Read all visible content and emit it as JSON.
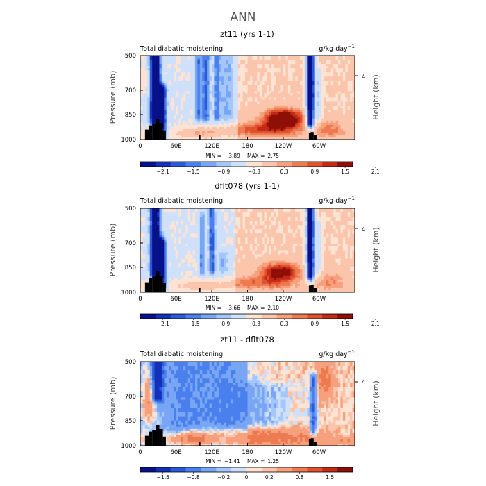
{
  "figure": {
    "title": "ANN"
  },
  "colors": {
    "diverging_palette": [
      "#08108a",
      "#1530b8",
      "#2a5ad8",
      "#4a80ee",
      "#78a6f4",
      "#a4c6f8",
      "#cfe0fb",
      "#fde3d3",
      "#fbc5ac",
      "#f6a07d",
      "#ee7a52",
      "#e0512e",
      "#c42a18",
      "#8e0f08"
    ],
    "terrain": "#000000"
  },
  "chart_data": [
    {
      "type": "heatmap",
      "title": "zt11 (yrs 1-1)",
      "left_label": "Total diabatic moistening",
      "right_label": "g/kg day",
      "right_label_exp": "−1",
      "ylabel": "Pressure (mb)",
      "ylabel_right": "Height (km)",
      "yticks": [
        "500",
        "700",
        "850",
        "1000"
      ],
      "ytick_values": [
        500,
        700,
        850,
        1000
      ],
      "ytick_right": "4",
      "xticks": [
        "0",
        "60E",
        "120E",
        "180",
        "120W",
        "60W"
      ],
      "xtick_lon": [
        0,
        60,
        120,
        180,
        240,
        300
      ],
      "xlim": [
        0,
        360
      ],
      "ylim": [
        1000,
        500
      ],
      "min_label": "MIN =",
      "min_value": "−3.89",
      "max_label": "MAX =",
      "max_value": "2.75",
      "colorbar_labels": [
        "−2.1",
        "−1.5",
        "−0.9",
        "−0.3",
        "0.3",
        "0.9",
        "1.5",
        "2.1"
      ],
      "field": {
        "neg_bands": [
          {
            "lon": 25,
            "w": 6,
            "amp": 3.6,
            "pmin": 500,
            "pmax": 880
          },
          {
            "lon": 37,
            "w": 5,
            "amp": 2.2,
            "pmin": 700,
            "pmax": 960
          },
          {
            "lon": 97,
            "w": 4,
            "amp": 1.3,
            "pmin": 520,
            "pmax": 860
          },
          {
            "lon": 110,
            "w": 5,
            "amp": 1.5,
            "pmin": 500,
            "pmax": 860
          },
          {
            "lon": 128,
            "w": 4,
            "amp": 1.2,
            "pmin": 500,
            "pmax": 860
          },
          {
            "lon": 145,
            "w": 10,
            "amp": 0.9,
            "pmin": 500,
            "pmax": 860
          },
          {
            "lon": 285,
            "w": 5,
            "amp": 3.8,
            "pmin": 500,
            "pmax": 900
          },
          {
            "lon": 300,
            "w": 4,
            "amp": 1.2,
            "pmin": 600,
            "pmax": 870
          }
        ],
        "pos_blobs": [
          {
            "lon": 240,
            "p": 880,
            "wl": 36,
            "wp": 65,
            "amp": 2.6
          },
          {
            "lon": 190,
            "p": 940,
            "wl": 60,
            "wp": 40,
            "amp": 1.1
          },
          {
            "lon": 100,
            "p": 960,
            "wl": 40,
            "wp": 35,
            "amp": 1.0
          },
          {
            "lon": 320,
            "p": 930,
            "wl": 25,
            "wp": 60,
            "amp": 0.9
          },
          {
            "lon": 15,
            "p": 650,
            "wl": 12,
            "wp": 100,
            "amp": 0.4
          }
        ],
        "background": {
          "west": -0.35,
          "east": 0.35,
          "split_lon": 165
        }
      }
    },
    {
      "type": "heatmap",
      "title": "dflt078 (yrs 1-1)",
      "left_label": "Total diabatic moistening",
      "right_label": "g/kg day",
      "right_label_exp": "−1",
      "ylabel": "Pressure (mb)",
      "ylabel_right": "Height (km)",
      "yticks": [
        "500",
        "700",
        "850",
        "1000"
      ],
      "ytick_values": [
        500,
        700,
        850,
        1000
      ],
      "ytick_right": "4",
      "xticks": [
        "0",
        "60E",
        "120E",
        "180",
        "120W",
        "60W"
      ],
      "xtick_lon": [
        0,
        60,
        120,
        180,
        240,
        300
      ],
      "xlim": [
        0,
        360
      ],
      "ylim": [
        1000,
        500
      ],
      "min_label": "MIN =",
      "min_value": "−3.66",
      "max_label": "MAX =",
      "max_value": "2.10",
      "colorbar_labels": [
        "−2.1",
        "−1.5",
        "−0.9",
        "−0.3",
        "0.3",
        "0.9",
        "1.5",
        "2.1"
      ],
      "field": {
        "neg_bands": [
          {
            "lon": 25,
            "w": 6,
            "amp": 3.0,
            "pmin": 500,
            "pmax": 880
          },
          {
            "lon": 37,
            "w": 5,
            "amp": 2.0,
            "pmin": 700,
            "pmax": 960
          },
          {
            "lon": 104,
            "w": 4,
            "amp": 1.2,
            "pmin": 560,
            "pmax": 870
          },
          {
            "lon": 120,
            "w": 4,
            "amp": 1.6,
            "pmin": 500,
            "pmax": 860
          },
          {
            "lon": 140,
            "w": 8,
            "amp": 0.8,
            "pmin": 780,
            "pmax": 860
          },
          {
            "lon": 285,
            "w": 5,
            "amp": 3.5,
            "pmin": 500,
            "pmax": 900
          },
          {
            "lon": 300,
            "w": 4,
            "amp": 1.0,
            "pmin": 600,
            "pmax": 870
          }
        ],
        "pos_blobs": [
          {
            "lon": 235,
            "p": 880,
            "wl": 34,
            "wp": 60,
            "amp": 2.1
          },
          {
            "lon": 190,
            "p": 940,
            "wl": 55,
            "wp": 40,
            "amp": 0.9
          },
          {
            "lon": 100,
            "p": 960,
            "wl": 35,
            "wp": 35,
            "amp": 0.9
          },
          {
            "lon": 320,
            "p": 930,
            "wl": 25,
            "wp": 60,
            "amp": 0.8
          }
        ],
        "background": {
          "west": -0.35,
          "east": 0.35,
          "split_lon": 160
        }
      }
    },
    {
      "type": "heatmap",
      "title": "zt11 - dflt078",
      "left_label": "Total diabatic moistening",
      "right_label": "g/kg day",
      "right_label_exp": "−1",
      "ylabel": "Pressure (mb)",
      "ylabel_right": "Height (km)",
      "yticks": [
        "500",
        "700",
        "850",
        "1000"
      ],
      "ytick_values": [
        500,
        700,
        850,
        1000
      ],
      "ytick_right": "4",
      "xticks": [
        "0",
        "60E",
        "120E",
        "180",
        "120W",
        "60W"
      ],
      "xtick_lon": [
        0,
        60,
        120,
        180,
        240,
        300
      ],
      "xlim": [
        0,
        360
      ],
      "ylim": [
        1000,
        500
      ],
      "min_label": "MIN =",
      "min_value": "−1.41",
      "max_label": "MAX =",
      "max_value": "1.25",
      "colorbar_labels": [
        "−1.5",
        "−0.8",
        "−0.2",
        "0",
        "0.2",
        "0.8",
        "1.5"
      ],
      "field": {
        "neg_bands": [
          {
            "lon": 28,
            "w": 7,
            "amp": 1.3,
            "pmin": 500,
            "pmax": 700
          },
          {
            "lon": 70,
            "w": 20,
            "amp": 0.35,
            "pmin": 500,
            "pmax": 880
          },
          {
            "lon": 135,
            "w": 35,
            "amp": 0.35,
            "pmin": 500,
            "pmax": 860
          },
          {
            "lon": 200,
            "w": 40,
            "amp": 0.3,
            "pmin": 650,
            "pmax": 880
          },
          {
            "lon": 290,
            "w": 4,
            "amp": 0.9,
            "pmin": 600,
            "pmax": 900
          }
        ],
        "pos_blobs": [
          {
            "lon": 15,
            "p": 700,
            "wl": 10,
            "wp": 160,
            "amp": 0.7
          },
          {
            "lon": 210,
            "p": 930,
            "wl": 80,
            "wp": 50,
            "amp": 0.5
          },
          {
            "lon": 310,
            "p": 600,
            "wl": 15,
            "wp": 120,
            "amp": 0.5
          },
          {
            "lon": 90,
            "p": 950,
            "wl": 30,
            "wp": 40,
            "amp": 0.6
          }
        ],
        "background": {
          "west": -0.15,
          "east": 0.12,
          "split_lon": 180
        }
      }
    }
  ]
}
